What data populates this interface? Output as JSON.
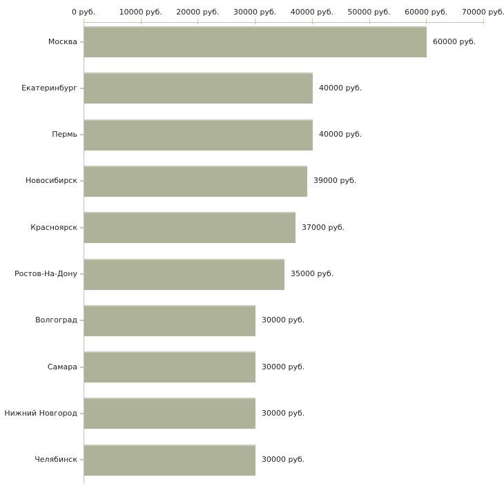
{
  "chart_data": {
    "type": "bar",
    "orientation": "horizontal",
    "title": "",
    "unit": "руб.",
    "categories": [
      "Москва",
      "Екатеринбург",
      "Пермь",
      "Новосибирск",
      "Красноярск",
      "Ростов-На-Дону",
      "Волгоград",
      "Самара",
      "Нижний Новгород",
      "Челябинск"
    ],
    "values": [
      60000,
      40000,
      40000,
      39000,
      37000,
      35000,
      30000,
      30000,
      30000,
      30000
    ],
    "value_labels": [
      "60000 руб.",
      "40000 руб.",
      "40000 руб.",
      "39000 руб.",
      "37000 руб.",
      "35000 руб.",
      "30000 руб.",
      "30000 руб.",
      "30000 руб.",
      "30000 руб."
    ],
    "x_ticks": [
      0,
      10000,
      20000,
      30000,
      40000,
      50000,
      60000,
      70000
    ],
    "x_tick_labels": [
      "0 руб.",
      "10000 руб.",
      "20000 руб.",
      "30000 руб.",
      "40000 руб.",
      "50000 руб.",
      "60000 руб.",
      "70000 руб."
    ],
    "xlim": [
      0,
      70000
    ],
    "grid": false,
    "legend": "none",
    "axis_position": "top",
    "colors": {
      "bar": "#adb299",
      "bar_top_edge": "#c5c8b3",
      "axis_line": "#bdbdbd",
      "tick": "#cfc89c",
      "text": "#222222",
      "background": "#ffffff"
    }
  }
}
